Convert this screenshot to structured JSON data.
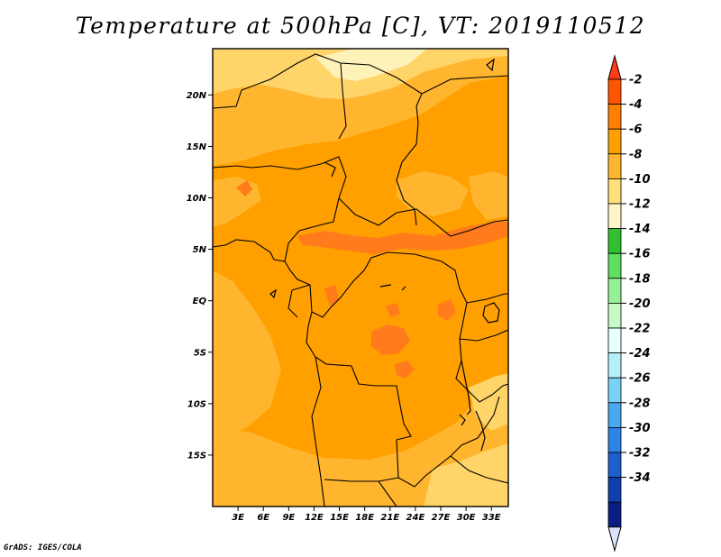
{
  "title": "Temperature at 500hPa [C], VT: 2019110512",
  "credit": "GrADS: IGES/COLA",
  "map": {
    "lon_range": [
      0,
      35
    ],
    "lat_range": [
      -20,
      24.5
    ],
    "lon_ticks": [
      {
        "value": 3,
        "label": "3E"
      },
      {
        "value": 6,
        "label": "6E"
      },
      {
        "value": 9,
        "label": "9E"
      },
      {
        "value": 12,
        "label": "12E"
      },
      {
        "value": 15,
        "label": "15E"
      },
      {
        "value": 18,
        "label": "18E"
      },
      {
        "value": 21,
        "label": "21E"
      },
      {
        "value": 24,
        "label": "24E"
      },
      {
        "value": 27,
        "label": "27E"
      },
      {
        "value": 30,
        "label": "30E"
      },
      {
        "value": 33,
        "label": "33E"
      }
    ],
    "lat_ticks": [
      {
        "value": 20,
        "label": "20N"
      },
      {
        "value": 15,
        "label": "15N"
      },
      {
        "value": 10,
        "label": "10N"
      },
      {
        "value": 5,
        "label": "5N"
      },
      {
        "value": 0,
        "label": "EQ"
      },
      {
        "value": -5,
        "label": "5S"
      },
      {
        "value": -10,
        "label": "10S"
      },
      {
        "value": -15,
        "label": "15S"
      }
    ]
  },
  "colorbar": {
    "levels": [
      "-2",
      "-4",
      "-6",
      "-8",
      "-10",
      "-12",
      "-14",
      "-16",
      "-18",
      "-20",
      "-22",
      "-24",
      "-26",
      "-28",
      "-30",
      "-32",
      "-34"
    ],
    "colors": [
      "#ff5500",
      "#ff7f00",
      "#ffa000",
      "#ffb62e",
      "#ffe07a",
      "#fff6c8",
      "#30c030",
      "#5ee05e",
      "#96f096",
      "#c8fac8",
      "#e6ffff",
      "#b4f0fa",
      "#78d2f5",
      "#4aa8f0",
      "#2f84e8",
      "#1e5fd0",
      "#1040b0",
      "#0a1e82"
    ],
    "end_top_color": "#ff3b1a",
    "end_bottom_color": "#dde3f8"
  },
  "field_colors": {
    "t_-6_-4": "#ffa000",
    "t_-8_-6": "#ffb62e",
    "t_-10_-8": "#ffd468",
    "t_-12_-10": "#fff2b8",
    "t_-4_-2": "#ff7b1c"
  }
}
